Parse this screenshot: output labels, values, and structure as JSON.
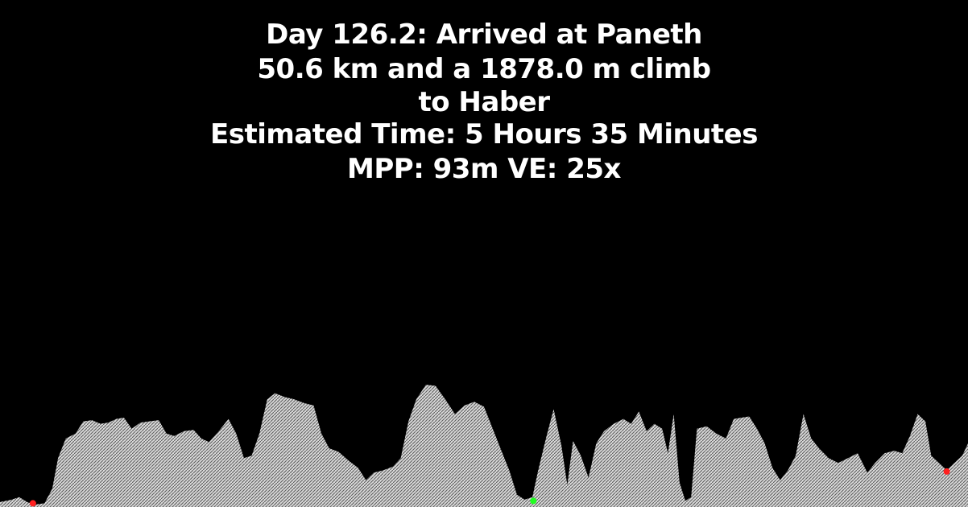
{
  "header": {
    "line1": "Day 126.2: Arrived at Paneth",
    "line2": "50.6 km and a 1878.0 m climb",
    "line3": "to Haber",
    "line4": "Estimated Time: 5 Hours 35 Minutes",
    "line5": "MPP: 93m VE: 25x"
  },
  "colors": {
    "background": "#000000",
    "text": "#ffffff",
    "terrain_fill": "#d8d8d8",
    "terrain_hatch": "#5a5a5a",
    "start_marker": "#ff2020",
    "mid_marker": "#20ff20",
    "end_marker": "#ff2020"
  },
  "chart_data": {
    "type": "area",
    "title": "Day 126.2: Arrived at Paneth",
    "xlabel": "",
    "ylabel": "",
    "x_units": "fraction_of_route",
    "y_units": "relative_elevation",
    "xlim": [
      0,
      1
    ],
    "ylim": [
      0,
      1
    ],
    "grid": false,
    "legend": "none",
    "profile": [
      [
        0.0,
        0.04
      ],
      [
        0.012,
        0.06
      ],
      [
        0.02,
        0.08
      ],
      [
        0.028,
        0.04
      ],
      [
        0.036,
        0.02
      ],
      [
        0.046,
        0.03
      ],
      [
        0.054,
        0.15
      ],
      [
        0.06,
        0.4
      ],
      [
        0.068,
        0.56
      ],
      [
        0.078,
        0.6
      ],
      [
        0.086,
        0.7
      ],
      [
        0.095,
        0.71
      ],
      [
        0.104,
        0.68
      ],
      [
        0.112,
        0.69
      ],
      [
        0.12,
        0.72
      ],
      [
        0.128,
        0.73
      ],
      [
        0.136,
        0.64
      ],
      [
        0.145,
        0.69
      ],
      [
        0.154,
        0.7
      ],
      [
        0.164,
        0.71
      ],
      [
        0.172,
        0.6
      ],
      [
        0.18,
        0.58
      ],
      [
        0.19,
        0.62
      ],
      [
        0.2,
        0.63
      ],
      [
        0.208,
        0.56
      ],
      [
        0.216,
        0.53
      ],
      [
        0.226,
        0.62
      ],
      [
        0.236,
        0.72
      ],
      [
        0.244,
        0.6
      ],
      [
        0.252,
        0.4
      ],
      [
        0.26,
        0.42
      ],
      [
        0.268,
        0.6
      ],
      [
        0.276,
        0.88
      ],
      [
        0.284,
        0.93
      ],
      [
        0.294,
        0.9
      ],
      [
        0.304,
        0.88
      ],
      [
        0.314,
        0.85
      ],
      [
        0.324,
        0.83
      ],
      [
        0.332,
        0.6
      ],
      [
        0.34,
        0.48
      ],
      [
        0.35,
        0.45
      ],
      [
        0.36,
        0.38
      ],
      [
        0.37,
        0.32
      ],
      [
        0.378,
        0.22
      ],
      [
        0.386,
        0.28
      ],
      [
        0.396,
        0.3
      ],
      [
        0.406,
        0.33
      ],
      [
        0.414,
        0.4
      ],
      [
        0.422,
        0.7
      ],
      [
        0.43,
        0.88
      ],
      [
        0.44,
        1.0
      ],
      [
        0.45,
        0.99
      ],
      [
        0.46,
        0.88
      ],
      [
        0.47,
        0.76
      ],
      [
        0.48,
        0.83
      ],
      [
        0.49,
        0.86
      ],
      [
        0.5,
        0.82
      ],
      [
        0.51,
        0.62
      ],
      [
        0.518,
        0.46
      ],
      [
        0.526,
        0.3
      ],
      [
        0.534,
        0.1
      ],
      [
        0.542,
        0.06
      ],
      [
        0.55,
        0.08
      ],
      [
        0.556,
        0.3
      ],
      [
        0.564,
        0.56
      ],
      [
        0.572,
        0.8
      ],
      [
        0.58,
        0.5
      ],
      [
        0.586,
        0.18
      ],
      [
        0.592,
        0.54
      ],
      [
        0.6,
        0.42
      ],
      [
        0.608,
        0.24
      ],
      [
        0.616,
        0.52
      ],
      [
        0.624,
        0.62
      ],
      [
        0.634,
        0.68
      ],
      [
        0.644,
        0.72
      ],
      [
        0.652,
        0.68
      ],
      [
        0.66,
        0.78
      ],
      [
        0.668,
        0.62
      ],
      [
        0.676,
        0.68
      ],
      [
        0.684,
        0.64
      ],
      [
        0.69,
        0.44
      ],
      [
        0.696,
        0.76
      ],
      [
        0.702,
        0.2
      ],
      [
        0.708,
        0.05
      ],
      [
        0.714,
        0.08
      ],
      [
        0.72,
        0.64
      ],
      [
        0.73,
        0.66
      ],
      [
        0.74,
        0.6
      ],
      [
        0.75,
        0.56
      ],
      [
        0.758,
        0.72
      ],
      [
        0.766,
        0.73
      ],
      [
        0.774,
        0.74
      ],
      [
        0.782,
        0.64
      ],
      [
        0.79,
        0.52
      ],
      [
        0.798,
        0.32
      ],
      [
        0.806,
        0.22
      ],
      [
        0.814,
        0.3
      ],
      [
        0.822,
        0.42
      ],
      [
        0.83,
        0.76
      ],
      [
        0.838,
        0.56
      ],
      [
        0.846,
        0.48
      ],
      [
        0.856,
        0.4
      ],
      [
        0.866,
        0.36
      ],
      [
        0.876,
        0.4
      ],
      [
        0.886,
        0.44
      ],
      [
        0.896,
        0.28
      ],
      [
        0.904,
        0.36
      ],
      [
        0.914,
        0.44
      ],
      [
        0.924,
        0.46
      ],
      [
        0.932,
        0.44
      ],
      [
        0.94,
        0.58
      ],
      [
        0.948,
        0.76
      ],
      [
        0.956,
        0.7
      ],
      [
        0.962,
        0.42
      ],
      [
        0.97,
        0.36
      ],
      [
        0.978,
        0.3
      ],
      [
        0.986,
        0.36
      ],
      [
        0.994,
        0.42
      ],
      [
        1.0,
        0.52
      ]
    ],
    "markers": [
      {
        "role": "start",
        "x": 0.034,
        "y": 0.03,
        "color": "#ff2020"
      },
      {
        "role": "waypoint",
        "x": 0.551,
        "y": 0.05,
        "color": "#20ff20"
      },
      {
        "role": "end",
        "x": 0.978,
        "y": 0.29,
        "color": "#ff2020"
      }
    ]
  }
}
